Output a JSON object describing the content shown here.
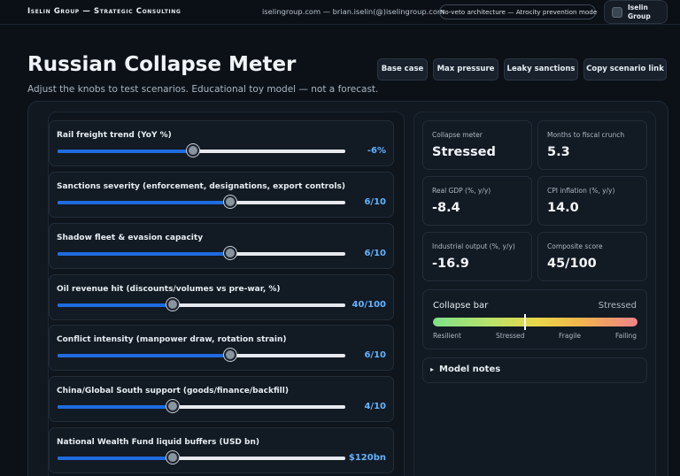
{
  "header": {
    "brand": "Iselin Group — Strategic Consulting",
    "contact": "iselingroup.com — brian.iselin(@)iselingroup.com",
    "badge": "No-veto architecture — Atrocity prevention mode",
    "logo_text": "Iselin Group"
  },
  "page": {
    "title": "Russian Collapse Meter",
    "subtitle": "Adjust the knobs to test scenarios. Educational toy model — not a forecast."
  },
  "toolbar": {
    "base_case": "Base case",
    "max_pressure": "Max pressure",
    "leaky_sanctions": "Leaky sanctions",
    "copy_link": "Copy scenario link"
  },
  "knobs": [
    {
      "label": "Rail freight trend (YoY %)",
      "value": "-6%",
      "fraction": 0.47
    },
    {
      "label": "Sanctions severity (enforcement, designations, export controls)",
      "value": "6/10",
      "fraction": 0.6
    },
    {
      "label": "Shadow fleet & evasion capacity",
      "value": "6/10",
      "fraction": 0.6
    },
    {
      "label": "Oil revenue hit (discounts/volumes vs pre-war, %)",
      "value": "40/100",
      "fraction": 0.4
    },
    {
      "label": "Conflict intensity (manpower draw, rotation strain)",
      "value": "6/10",
      "fraction": 0.6
    },
    {
      "label": "China/Global South support (goods/finance/backfill)",
      "value": "4/10",
      "fraction": 0.4
    },
    {
      "label": "National Wealth Fund liquid buffers (USD bn)",
      "value": "$120bn",
      "fraction": 0.4
    }
  ],
  "metrics": [
    {
      "label": "Collapse meter",
      "value": "Stressed"
    },
    {
      "label": "Months to fiscal crunch",
      "value": "5.3"
    },
    {
      "label": "Real GDP (%, y/y)",
      "value": "-8.4"
    },
    {
      "label": "CPI inflation (%, y/y)",
      "value": "14.0"
    },
    {
      "label": "Industrial output (%, y/y)",
      "value": "-16.9"
    },
    {
      "label": "Composite score",
      "value": "45/100"
    }
  ],
  "collapse_bar": {
    "title": "Collapse bar",
    "state": "Stressed",
    "marker_fraction": 0.45,
    "scale": [
      "Resilient",
      "Stressed",
      "Fragile",
      "Failing"
    ],
    "gradient_colors": [
      "#7fe08a",
      "#e8d74a",
      "#f08389"
    ]
  },
  "notes": {
    "arrow": "▸",
    "label": "Model notes"
  }
}
